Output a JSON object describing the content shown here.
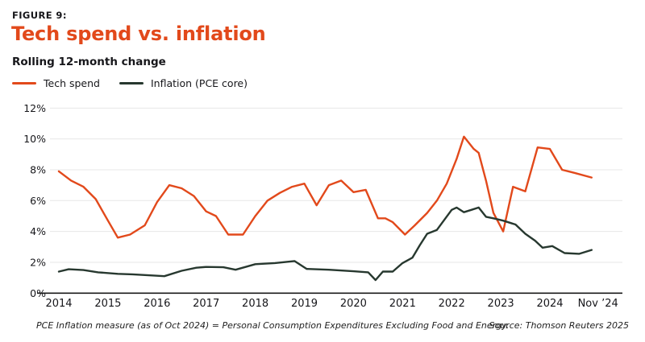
{
  "header": {
    "eyebrow": "FIGURE 9:",
    "title": "Tech spend vs. inflation",
    "subtitle": "Rolling 12-month change"
  },
  "legend": [
    {
      "label": "Tech spend",
      "color": "#e2491b"
    },
    {
      "label": "Inflation (PCE core)",
      "color": "#27382f"
    }
  ],
  "footnote": "PCE Inflation measure (as of Oct 2024) =  Personal Consumption Expenditures Excluding Food and Energy.",
  "source": "Source: Thomson Reuters 2025",
  "colors": {
    "accent_orange": "#e2491b",
    "dark_green": "#27382f",
    "grid": "#e7e7e7",
    "axis": "#1a1a1a",
    "text": "#16161a"
  },
  "chart_data": {
    "type": "line",
    "title": "Tech spend vs. inflation",
    "subtitle": "Rolling 12-month change",
    "xlabel": "",
    "ylabel": "",
    "ylim": [
      0,
      12
    ],
    "ytick_step": 2,
    "ytick_suffix": "%",
    "grid": true,
    "legend_position": "top-left",
    "x_ticks": [
      {
        "label": "2014",
        "t": 2014
      },
      {
        "label": "2015",
        "t": 2015
      },
      {
        "label": "2016",
        "t": 2016
      },
      {
        "label": "2017",
        "t": 2017
      },
      {
        "label": "2018",
        "t": 2018
      },
      {
        "label": "2019",
        "t": 2019
      },
      {
        "label": "2020",
        "t": 2020
      },
      {
        "label": "2021",
        "t": 2021
      },
      {
        "label": "2022",
        "t": 2022
      },
      {
        "label": "2023",
        "t": 2023
      },
      {
        "label": "2024",
        "t": 2024
      },
      {
        "label": "Nov ’24",
        "t": 2024.98
      }
    ],
    "series": [
      {
        "name": "Tech spend",
        "color": "#e2491b",
        "points": [
          [
            2014.0,
            7.9
          ],
          [
            2014.25,
            7.3
          ],
          [
            2014.5,
            6.9
          ],
          [
            2014.75,
            6.1
          ],
          [
            2015.0,
            4.7
          ],
          [
            2015.2,
            3.6
          ],
          [
            2015.45,
            3.8
          ],
          [
            2015.75,
            4.4
          ],
          [
            2016.0,
            5.9
          ],
          [
            2016.25,
            7.0
          ],
          [
            2016.5,
            6.8
          ],
          [
            2016.75,
            6.3
          ],
          [
            2017.0,
            5.3
          ],
          [
            2017.2,
            5.0
          ],
          [
            2017.45,
            3.8
          ],
          [
            2017.75,
            3.8
          ],
          [
            2018.0,
            5.0
          ],
          [
            2018.25,
            6.0
          ],
          [
            2018.5,
            6.5
          ],
          [
            2018.75,
            6.9
          ],
          [
            2019.0,
            7.1
          ],
          [
            2019.25,
            5.7
          ],
          [
            2019.5,
            7.0
          ],
          [
            2019.75,
            7.3
          ],
          [
            2020.0,
            6.55
          ],
          [
            2020.25,
            6.7
          ],
          [
            2020.5,
            4.85
          ],
          [
            2020.65,
            4.85
          ],
          [
            2020.8,
            4.6
          ],
          [
            2021.05,
            3.8
          ],
          [
            2021.25,
            4.4
          ],
          [
            2021.5,
            5.2
          ],
          [
            2021.7,
            6.0
          ],
          [
            2021.9,
            7.1
          ],
          [
            2022.1,
            8.7
          ],
          [
            2022.25,
            10.15
          ],
          [
            2022.45,
            9.35
          ],
          [
            2022.55,
            9.1
          ],
          [
            2022.7,
            7.3
          ],
          [
            2022.85,
            5.2
          ],
          [
            2023.05,
            4.0
          ],
          [
            2023.25,
            6.9
          ],
          [
            2023.5,
            6.6
          ],
          [
            2023.75,
            9.45
          ],
          [
            2024.0,
            9.35
          ],
          [
            2024.25,
            8.0
          ],
          [
            2024.5,
            7.8
          ],
          [
            2024.85,
            7.5
          ]
        ]
      },
      {
        "name": "Inflation (PCE core)",
        "color": "#27382f",
        "points": [
          [
            2014.0,
            1.4
          ],
          [
            2014.2,
            1.55
          ],
          [
            2014.5,
            1.5
          ],
          [
            2014.8,
            1.35
          ],
          [
            2015.2,
            1.25
          ],
          [
            2015.5,
            1.22
          ],
          [
            2015.9,
            1.15
          ],
          [
            2016.15,
            1.1
          ],
          [
            2016.5,
            1.45
          ],
          [
            2016.8,
            1.65
          ],
          [
            2017.0,
            1.7
          ],
          [
            2017.35,
            1.68
          ],
          [
            2017.6,
            1.52
          ],
          [
            2018.0,
            1.88
          ],
          [
            2018.4,
            1.95
          ],
          [
            2018.8,
            2.08
          ],
          [
            2019.05,
            1.57
          ],
          [
            2019.5,
            1.52
          ],
          [
            2020.0,
            1.42
          ],
          [
            2020.3,
            1.35
          ],
          [
            2020.45,
            0.85
          ],
          [
            2020.6,
            1.4
          ],
          [
            2020.8,
            1.4
          ],
          [
            2021.0,
            1.95
          ],
          [
            2021.2,
            2.3
          ],
          [
            2021.35,
            3.1
          ],
          [
            2021.5,
            3.85
          ],
          [
            2021.7,
            4.1
          ],
          [
            2022.0,
            5.4
          ],
          [
            2022.1,
            5.55
          ],
          [
            2022.25,
            5.25
          ],
          [
            2022.4,
            5.4
          ],
          [
            2022.55,
            5.55
          ],
          [
            2022.7,
            4.95
          ],
          [
            2022.85,
            4.85
          ],
          [
            2023.05,
            4.7
          ],
          [
            2023.3,
            4.45
          ],
          [
            2023.5,
            3.85
          ],
          [
            2023.7,
            3.4
          ],
          [
            2023.85,
            2.95
          ],
          [
            2024.05,
            3.05
          ],
          [
            2024.3,
            2.6
          ],
          [
            2024.6,
            2.55
          ],
          [
            2024.85,
            2.8
          ]
        ]
      }
    ]
  }
}
